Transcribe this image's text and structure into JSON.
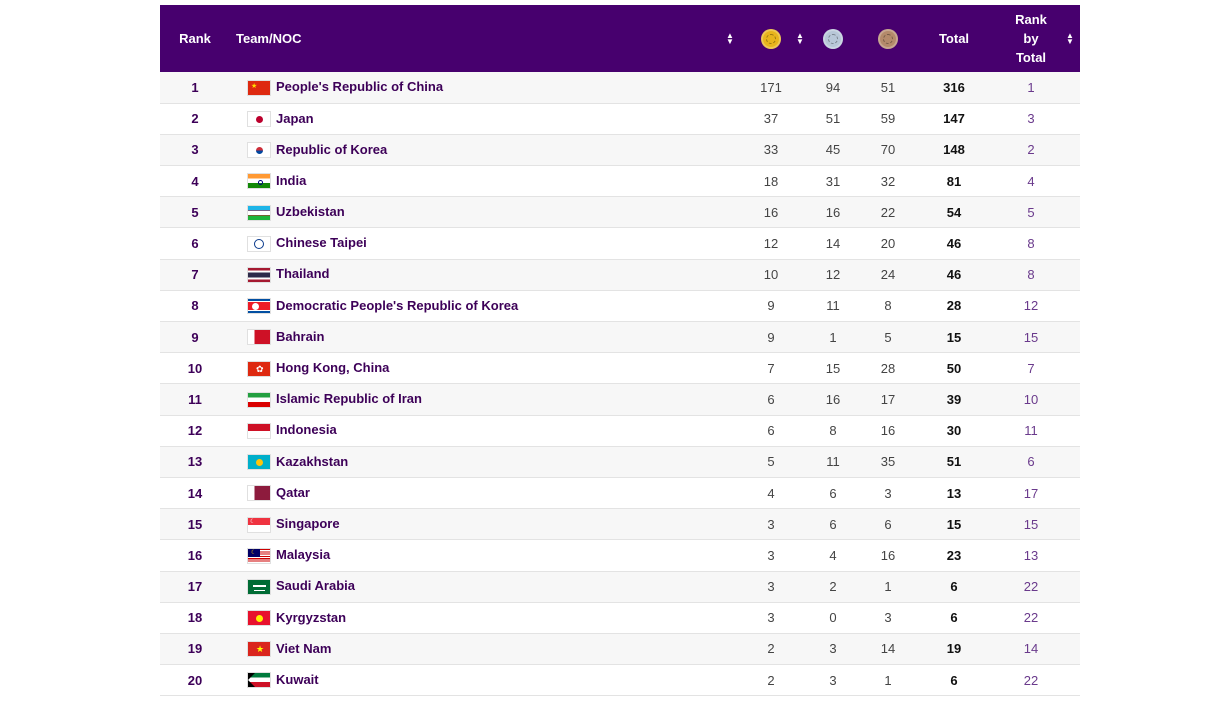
{
  "header": {
    "rank": "Rank",
    "team": "Team/NOC",
    "gold_icon": "gold-medal-icon",
    "silver_icon": "silver-medal-icon",
    "bronze_icon": "bronze-medal-icon",
    "total": "Total",
    "rank_by_total": [
      "Rank",
      "by",
      "Total"
    ]
  },
  "colors": {
    "header_bg": "#47006e",
    "link": "#3d0058",
    "gold": "#e7b41c",
    "silver": "#b8c7d8",
    "bronze": "#b48a6b"
  },
  "rows": [
    {
      "rank": "1",
      "team": "People's Republic of China",
      "flag": "china-flag-icon",
      "gold": "171",
      "silver": "94",
      "bronze": "51",
      "total": "316",
      "rank_total": "1"
    },
    {
      "rank": "2",
      "team": "Japan",
      "flag": "japan-flag-icon",
      "gold": "37",
      "silver": "51",
      "bronze": "59",
      "total": "147",
      "rank_total": "3"
    },
    {
      "rank": "3",
      "team": "Republic of Korea",
      "flag": "korea-flag-icon",
      "gold": "33",
      "silver": "45",
      "bronze": "70",
      "total": "148",
      "rank_total": "2"
    },
    {
      "rank": "4",
      "team": "India",
      "flag": "india-flag-icon",
      "gold": "18",
      "silver": "31",
      "bronze": "32",
      "total": "81",
      "rank_total": "4"
    },
    {
      "rank": "5",
      "team": "Uzbekistan",
      "flag": "uzbekistan-flag-icon",
      "gold": "16",
      "silver": "16",
      "bronze": "22",
      "total": "54",
      "rank_total": "5"
    },
    {
      "rank": "6",
      "team": "Chinese Taipei",
      "flag": "chinese-taipei-flag-icon",
      "gold": "12",
      "silver": "14",
      "bronze": "20",
      "total": "46",
      "rank_total": "8"
    },
    {
      "rank": "7",
      "team": "Thailand",
      "flag": "thailand-flag-icon",
      "gold": "10",
      "silver": "12",
      "bronze": "24",
      "total": "46",
      "rank_total": "8"
    },
    {
      "rank": "8",
      "team": "Democratic People's Republic of Korea",
      "flag": "dpr-korea-flag-icon",
      "gold": "9",
      "silver": "11",
      "bronze": "8",
      "total": "28",
      "rank_total": "12"
    },
    {
      "rank": "9",
      "team": "Bahrain",
      "flag": "bahrain-flag-icon",
      "gold": "9",
      "silver": "1",
      "bronze": "5",
      "total": "15",
      "rank_total": "15"
    },
    {
      "rank": "10",
      "team": "Hong Kong, China",
      "flag": "hong-kong-flag-icon",
      "gold": "7",
      "silver": "15",
      "bronze": "28",
      "total": "50",
      "rank_total": "7"
    },
    {
      "rank": "11",
      "team": "Islamic Republic of Iran",
      "flag": "iran-flag-icon",
      "gold": "6",
      "silver": "16",
      "bronze": "17",
      "total": "39",
      "rank_total": "10"
    },
    {
      "rank": "12",
      "team": "Indonesia",
      "flag": "indonesia-flag-icon",
      "gold": "6",
      "silver": "8",
      "bronze": "16",
      "total": "30",
      "rank_total": "11"
    },
    {
      "rank": "13",
      "team": "Kazakhstan",
      "flag": "kazakhstan-flag-icon",
      "gold": "5",
      "silver": "11",
      "bronze": "35",
      "total": "51",
      "rank_total": "6"
    },
    {
      "rank": "14",
      "team": "Qatar",
      "flag": "qatar-flag-icon",
      "gold": "4",
      "silver": "6",
      "bronze": "3",
      "total": "13",
      "rank_total": "17"
    },
    {
      "rank": "15",
      "team": "Singapore",
      "flag": "singapore-flag-icon",
      "gold": "3",
      "silver": "6",
      "bronze": "6",
      "total": "15",
      "rank_total": "15"
    },
    {
      "rank": "16",
      "team": "Malaysia",
      "flag": "malaysia-flag-icon",
      "gold": "3",
      "silver": "4",
      "bronze": "16",
      "total": "23",
      "rank_total": "13"
    },
    {
      "rank": "17",
      "team": "Saudi Arabia",
      "flag": "saudi-arabia-flag-icon",
      "gold": "3",
      "silver": "2",
      "bronze": "1",
      "total": "6",
      "rank_total": "22"
    },
    {
      "rank": "18",
      "team": "Kyrgyzstan",
      "flag": "kyrgyzstan-flag-icon",
      "gold": "3",
      "silver": "0",
      "bronze": "3",
      "total": "6",
      "rank_total": "22"
    },
    {
      "rank": "19",
      "team": "Viet Nam",
      "flag": "viet-nam-flag-icon",
      "gold": "2",
      "silver": "3",
      "bronze": "14",
      "total": "19",
      "rank_total": "14"
    },
    {
      "rank": "20",
      "team": "Kuwait",
      "flag": "kuwait-flag-icon",
      "gold": "2",
      "silver": "3",
      "bronze": "1",
      "total": "6",
      "rank_total": "22"
    }
  ]
}
